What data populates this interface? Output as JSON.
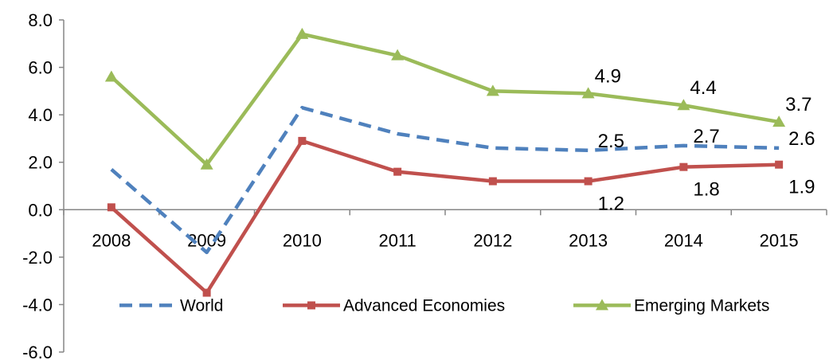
{
  "chart_data": {
    "type": "line",
    "categories": [
      "2008",
      "2009",
      "2010",
      "2011",
      "2012",
      "2013",
      "2014",
      "2015"
    ],
    "ylim": [
      -6.0,
      8.0
    ],
    "yticks": [
      "8.0",
      "6.0",
      "4.0",
      "2.0",
      "0.0",
      "-2.0",
      "-4.0",
      "-6.0"
    ],
    "ytick_values": [
      8,
      6,
      4,
      2,
      0,
      -2,
      -4,
      -6
    ],
    "grid": false,
    "legend_position": "bottom",
    "series": [
      {
        "name": "World",
        "values": [
          1.7,
          -1.8,
          4.3,
          3.2,
          2.6,
          2.5,
          2.7,
          2.6
        ],
        "color": "#4F81BD",
        "style": "dashed",
        "marker": "none",
        "labels": [
          "",
          "",
          "",
          "",
          "",
          "2.5",
          "2.7",
          "2.6"
        ]
      },
      {
        "name": "Advanced Economies",
        "values": [
          0.1,
          -3.5,
          2.9,
          1.6,
          1.2,
          1.2,
          1.8,
          1.9
        ],
        "color": "#C0504D",
        "style": "solid",
        "marker": "square",
        "labels": [
          "",
          "",
          "",
          "",
          "",
          "1.2",
          "1.8",
          "1.9"
        ]
      },
      {
        "name": "Emerging Markets",
        "values": [
          5.6,
          1.9,
          7.4,
          6.5,
          5.0,
          4.9,
          4.4,
          3.7
        ],
        "color": "#9BBB59",
        "style": "solid",
        "marker": "triangle",
        "labels": [
          "",
          "",
          "",
          "",
          "",
          "4.9",
          "4.4",
          "3.7"
        ]
      }
    ]
  }
}
